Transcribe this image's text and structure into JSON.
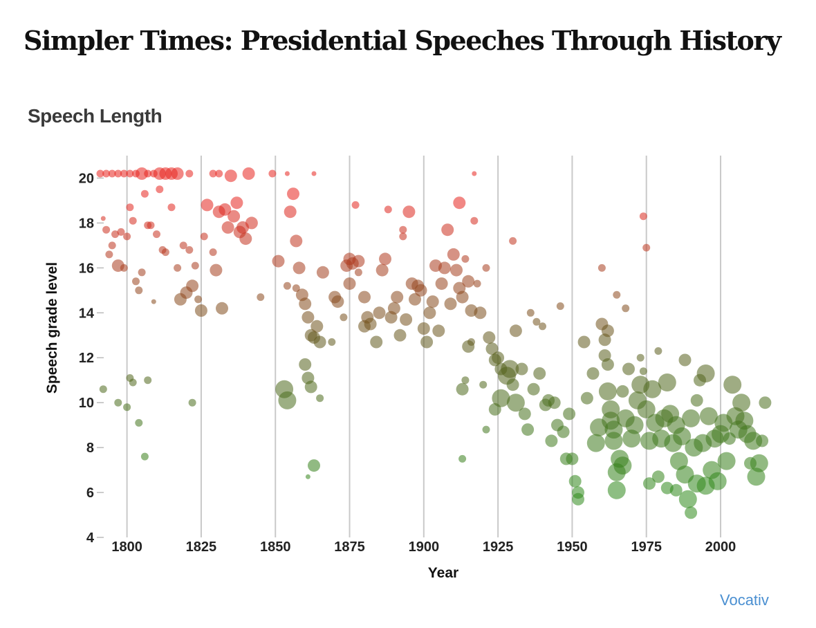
{
  "header": {
    "title": "Simpler Times: Presidential Speeches Through History",
    "credit": "Vocativ"
  },
  "chart_data": {
    "type": "scatter",
    "title": "Speech Length",
    "xlabel": "Year",
    "ylabel": "Speech grade level",
    "xlim": [
      1791,
      2017
    ],
    "ylim": [
      4,
      21
    ],
    "x_ticks": [
      1800,
      1825,
      1850,
      1875,
      1900,
      1925,
      1950,
      1975,
      2000
    ],
    "y_ticks": [
      4,
      6,
      8,
      10,
      12,
      14,
      16,
      18,
      20
    ],
    "grid": "vertical",
    "color_encoding": {
      "high": "#e8241f",
      "low": "#2f8a1c"
    },
    "points": [
      [
        1791,
        20.2,
        2
      ],
      [
        1793,
        20.2,
        2
      ],
      [
        1795,
        20.2,
        2
      ],
      [
        1797,
        20.2,
        2
      ],
      [
        1799,
        20.2,
        2
      ],
      [
        1801,
        20.2,
        2
      ],
      [
        1803,
        20.2,
        2
      ],
      [
        1805,
        20.2,
        3
      ],
      [
        1807,
        20.2,
        2
      ],
      [
        1809,
        20.2,
        2
      ],
      [
        1811,
        20.2,
        3
      ],
      [
        1813,
        20.2,
        3
      ],
      [
        1815,
        20.2,
        3
      ],
      [
        1817,
        20.2,
        3
      ],
      [
        1821,
        20.2,
        2
      ],
      [
        1829,
        20.2,
        2
      ],
      [
        1831,
        20.2,
        2
      ],
      [
        1849,
        20.2,
        2
      ],
      [
        1854,
        20.2,
        1
      ],
      [
        1863,
        20.2,
        1
      ],
      [
        1917,
        20.2,
        1
      ],
      [
        1792,
        18.2,
        1
      ],
      [
        1793,
        17.7,
        2
      ],
      [
        1794,
        16.6,
        2
      ],
      [
        1795,
        17.0,
        2
      ],
      [
        1796,
        17.5,
        2
      ],
      [
        1797,
        16.1,
        3
      ],
      [
        1798,
        17.6,
        2
      ],
      [
        1799,
        16.0,
        2
      ],
      [
        1800,
        17.4,
        2
      ],
      [
        1801,
        18.7,
        2
      ],
      [
        1802,
        18.1,
        2
      ],
      [
        1803,
        15.4,
        2
      ],
      [
        1804,
        15.0,
        2
      ],
      [
        1805,
        15.8,
        2
      ],
      [
        1806,
        19.3,
        2
      ],
      [
        1807,
        17.9,
        2
      ],
      [
        1808,
        17.9,
        2
      ],
      [
        1810,
        17.5,
        2
      ],
      [
        1811,
        19.5,
        2
      ],
      [
        1812,
        16.8,
        2
      ],
      [
        1813,
        16.7,
        2
      ],
      [
        1815,
        18.7,
        2
      ],
      [
        1817,
        16.0,
        2
      ],
      [
        1818,
        14.6,
        3
      ],
      [
        1819,
        17.0,
        2
      ],
      [
        1820,
        14.9,
        3
      ],
      [
        1821,
        16.8,
        2
      ],
      [
        1822,
        15.2,
        3
      ],
      [
        1823,
        16.1,
        2
      ],
      [
        1824,
        14.6,
        2
      ],
      [
        1825,
        14.1,
        3
      ],
      [
        1826,
        17.4,
        2
      ],
      [
        1827,
        18.8,
        3
      ],
      [
        1829,
        16.7,
        2
      ],
      [
        1830,
        15.9,
        3
      ],
      [
        1831,
        18.5,
        3
      ],
      [
        1832,
        14.2,
        3
      ],
      [
        1833,
        18.6,
        3
      ],
      [
        1834,
        17.8,
        3
      ],
      [
        1835,
        20.1,
        3
      ],
      [
        1836,
        18.3,
        3
      ],
      [
        1837,
        18.9,
        3
      ],
      [
        1838,
        17.6,
        3
      ],
      [
        1839,
        17.8,
        3
      ],
      [
        1840,
        17.3,
        3
      ],
      [
        1841,
        20.2,
        3
      ],
      [
        1842,
        18.0,
        3
      ],
      [
        1845,
        14.7,
        2
      ],
      [
        1792,
        10.6,
        2
      ],
      [
        1797,
        10.0,
        2
      ],
      [
        1800,
        9.8,
        2
      ],
      [
        1801,
        11.1,
        2
      ],
      [
        1802,
        10.9,
        2
      ],
      [
        1804,
        9.1,
        2
      ],
      [
        1806,
        7.6,
        2
      ],
      [
        1807,
        11.0,
        2
      ],
      [
        1809,
        14.5,
        1
      ],
      [
        1822,
        10.0,
        2
      ],
      [
        1851,
        16.3,
        3
      ],
      [
        1853,
        10.6,
        4
      ],
      [
        1854,
        10.1,
        4
      ],
      [
        1854,
        15.2,
        2
      ],
      [
        1855,
        18.5,
        3
      ],
      [
        1856,
        19.3,
        3
      ],
      [
        1857,
        17.2,
        3
      ],
      [
        1857,
        15.1,
        2
      ],
      [
        1858,
        16.0,
        3
      ],
      [
        1859,
        14.8,
        3
      ],
      [
        1860,
        14.4,
        3
      ],
      [
        1860,
        11.7,
        3
      ],
      [
        1861,
        11.1,
        3
      ],
      [
        1861,
        13.8,
        3
      ],
      [
        1862,
        13.0,
        3
      ],
      [
        1862,
        10.7,
        3
      ],
      [
        1863,
        12.9,
        3
      ],
      [
        1864,
        13.4,
        3
      ],
      [
        1865,
        12.7,
        3
      ],
      [
        1865,
        10.2,
        2
      ],
      [
        1861,
        6.7,
        1
      ],
      [
        1863,
        7.2,
        3
      ],
      [
        1866,
        15.8,
        3
      ],
      [
        1869,
        12.7,
        2
      ],
      [
        1870,
        14.7,
        3
      ],
      [
        1871,
        14.5,
        3
      ],
      [
        1873,
        13.8,
        2
      ],
      [
        1874,
        16.1,
        3
      ],
      [
        1875,
        15.3,
        3
      ],
      [
        1875,
        16.4,
        3
      ],
      [
        1876,
        16.2,
        3
      ],
      [
        1877,
        18.8,
        2
      ],
      [
        1878,
        16.3,
        3
      ],
      [
        1878,
        15.8,
        2
      ],
      [
        1880,
        14.7,
        3
      ],
      [
        1880,
        13.4,
        3
      ],
      [
        1881,
        13.8,
        3
      ],
      [
        1882,
        13.5,
        3
      ],
      [
        1884,
        12.7,
        3
      ],
      [
        1885,
        14.0,
        3
      ],
      [
        1886,
        15.9,
        3
      ],
      [
        1887,
        16.4,
        3
      ],
      [
        1888,
        18.6,
        2
      ],
      [
        1889,
        13.8,
        3
      ],
      [
        1890,
        14.2,
        3
      ],
      [
        1891,
        14.7,
        3
      ],
      [
        1892,
        13.0,
        3
      ],
      [
        1893,
        17.7,
        2
      ],
      [
        1893,
        17.4,
        2
      ],
      [
        1894,
        13.7,
        3
      ],
      [
        1895,
        18.5,
        3
      ],
      [
        1896,
        15.3,
        3
      ],
      [
        1897,
        14.6,
        3
      ],
      [
        1898,
        15.2,
        3
      ],
      [
        1899,
        15.0,
        3
      ],
      [
        1900,
        13.3,
        3
      ],
      [
        1901,
        12.7,
        3
      ],
      [
        1902,
        14.0,
        3
      ],
      [
        1903,
        14.5,
        3
      ],
      [
        1904,
        16.1,
        3
      ],
      [
        1905,
        13.2,
        3
      ],
      [
        1906,
        15.3,
        3
      ],
      [
        1907,
        16.0,
        3
      ],
      [
        1908,
        17.7,
        3
      ],
      [
        1909,
        14.4,
        3
      ],
      [
        1910,
        16.6,
        3
      ],
      [
        1911,
        15.9,
        3
      ],
      [
        1912,
        18.9,
        3
      ],
      [
        1912,
        15.1,
        3
      ],
      [
        1913,
        14.7,
        3
      ],
      [
        1914,
        16.4,
        2
      ],
      [
        1915,
        15.4,
        3
      ],
      [
        1916,
        14.1,
        3
      ],
      [
        1917,
        18.1,
        2
      ],
      [
        1918,
        15.3,
        2
      ],
      [
        1919,
        14.0,
        3
      ],
      [
        1921,
        16.0,
        2
      ],
      [
        1922,
        12.9,
        3
      ],
      [
        1923,
        12.4,
        3
      ],
      [
        1924,
        11.9,
        3
      ],
      [
        1925,
        12.0,
        3
      ],
      [
        1926,
        11.5,
        3
      ],
      [
        1928,
        11.2,
        4
      ],
      [
        1930,
        10.8,
        3
      ],
      [
        1931,
        13.2,
        3
      ],
      [
        1930,
        17.2,
        2
      ],
      [
        1913,
        10.6,
        3
      ],
      [
        1913,
        7.5,
        2
      ],
      [
        1914,
        11.0,
        2
      ],
      [
        1915,
        12.5,
        3
      ],
      [
        1916,
        12.7,
        2
      ],
      [
        1920,
        10.8,
        2
      ],
      [
        1921,
        8.8,
        2
      ],
      [
        1924,
        9.7,
        3
      ],
      [
        1926,
        10.2,
        4
      ],
      [
        1929,
        11.5,
        4
      ],
      [
        1931,
        10.0,
        4
      ],
      [
        1933,
        11.5,
        3
      ],
      [
        1934,
        9.5,
        3
      ],
      [
        1935,
        8.8,
        3
      ],
      [
        1936,
        14.0,
        2
      ],
      [
        1937,
        10.6,
        3
      ],
      [
        1938,
        13.6,
        2
      ],
      [
        1939,
        11.3,
        3
      ],
      [
        1940,
        13.4,
        2
      ],
      [
        1941,
        9.9,
        3
      ],
      [
        1942,
        10.1,
        3
      ],
      [
        1943,
        8.3,
        3
      ],
      [
        1944,
        10.0,
        3
      ],
      [
        1945,
        9.0,
        3
      ],
      [
        1946,
        14.3,
        2
      ],
      [
        1947,
        8.7,
        3
      ],
      [
        1948,
        7.5,
        3
      ],
      [
        1949,
        9.5,
        3
      ],
      [
        1950,
        7.5,
        3
      ],
      [
        1951,
        6.5,
        3
      ],
      [
        1952,
        6.0,
        3
      ],
      [
        1952,
        5.7,
        3
      ],
      [
        1954,
        12.7,
        3
      ],
      [
        1955,
        10.2,
        3
      ],
      [
        1957,
        11.3,
        3
      ],
      [
        1958,
        8.2,
        4
      ],
      [
        1959,
        8.9,
        4
      ],
      [
        1960,
        16.0,
        2
      ],
      [
        1960,
        13.5,
        3
      ],
      [
        1961,
        12.8,
        3
      ],
      [
        1961,
        12.1,
        3
      ],
      [
        1962,
        13.2,
        3
      ],
      [
        1962,
        11.7,
        3
      ],
      [
        1962,
        10.5,
        4
      ],
      [
        1963,
        9.7,
        4
      ],
      [
        1963,
        9.2,
        4
      ],
      [
        1964,
        8.8,
        4
      ],
      [
        1964,
        8.3,
        4
      ],
      [
        1965,
        14.8,
        2
      ],
      [
        1965,
        6.9,
        4
      ],
      [
        1965,
        6.1,
        4
      ],
      [
        1966,
        7.5,
        4
      ],
      [
        1967,
        7.2,
        4
      ],
      [
        1967,
        10.5,
        3
      ],
      [
        1968,
        14.2,
        2
      ],
      [
        1968,
        9.3,
        4
      ],
      [
        1969,
        11.5,
        3
      ],
      [
        1970,
        8.4,
        4
      ],
      [
        1971,
        9.0,
        4
      ],
      [
        1972,
        10.1,
        4
      ],
      [
        1973,
        12.0,
        2
      ],
      [
        1973,
        10.8,
        4
      ],
      [
        1974,
        18.3,
        2
      ],
      [
        1974,
        11.4,
        2
      ],
      [
        1975,
        16.9,
        2
      ],
      [
        1975,
        9.7,
        4
      ],
      [
        1976,
        6.4,
        3
      ],
      [
        1976,
        8.3,
        4
      ],
      [
        1977,
        10.6,
        4
      ],
      [
        1978,
        9.1,
        4
      ],
      [
        1979,
        6.7,
        3
      ],
      [
        1979,
        12.3,
        2
      ],
      [
        1980,
        8.4,
        4
      ],
      [
        1981,
        9.3,
        4
      ],
      [
        1982,
        10.9,
        4
      ],
      [
        1982,
        6.2,
        3
      ],
      [
        1983,
        9.5,
        4
      ],
      [
        1984,
        8.2,
        4
      ],
      [
        1985,
        6.1,
        3
      ],
      [
        1985,
        9.0,
        4
      ],
      [
        1986,
        7.4,
        4
      ],
      [
        1987,
        8.5,
        4
      ],
      [
        1988,
        6.8,
        4
      ],
      [
        1988,
        11.9,
        3
      ],
      [
        1989,
        5.7,
        4
      ],
      [
        1990,
        5.1,
        3
      ],
      [
        1990,
        9.3,
        4
      ],
      [
        1991,
        8.0,
        4
      ],
      [
        1992,
        6.4,
        4
      ],
      [
        1992,
        10.1,
        3
      ],
      [
        1993,
        11.0,
        3
      ],
      [
        1994,
        8.2,
        4
      ],
      [
        1995,
        6.3,
        4
      ],
      [
        1995,
        11.3,
        4
      ],
      [
        1996,
        9.4,
        4
      ],
      [
        1997,
        7.0,
        4
      ],
      [
        1998,
        8.4,
        4
      ],
      [
        1999,
        6.5,
        4
      ],
      [
        2000,
        8.6,
        4
      ],
      [
        2001,
        9.1,
        4
      ],
      [
        2002,
        7.4,
        4
      ],
      [
        2003,
        8.4,
        3
      ],
      [
        2004,
        10.8,
        4
      ],
      [
        2005,
        9.4,
        4
      ],
      [
        2006,
        8.8,
        4
      ],
      [
        2007,
        10.0,
        4
      ],
      [
        2008,
        9.2,
        4
      ],
      [
        2009,
        8.6,
        4
      ],
      [
        2010,
        7.3,
        3
      ],
      [
        2011,
        8.3,
        4
      ],
      [
        2012,
        6.7,
        4
      ],
      [
        2013,
        7.3,
        4
      ],
      [
        2014,
        8.3,
        3
      ],
      [
        2015,
        10.0,
        3
      ]
    ]
  }
}
